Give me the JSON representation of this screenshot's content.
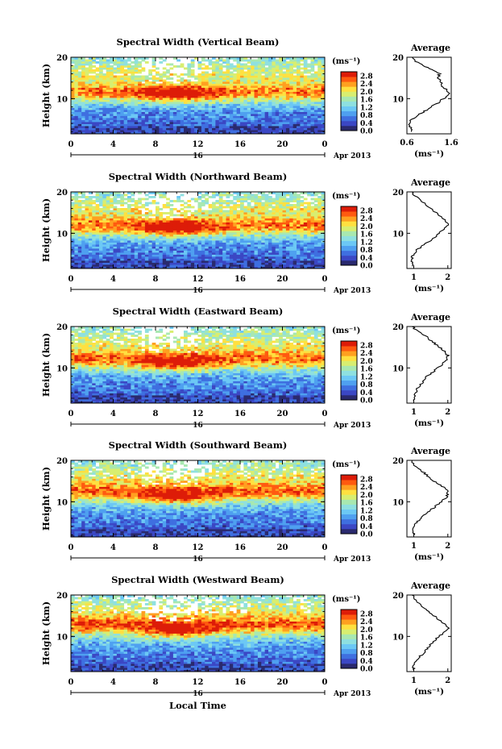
{
  "figure": {
    "xlabel": "Local Time",
    "x_ticks": [
      "0",
      "4",
      "8",
      "12",
      "16",
      "20",
      "0"
    ],
    "date_marker": "16",
    "date_label": "Apr 2013",
    "ylabel": "Height (km)",
    "y_ticks": [
      "20",
      "10"
    ],
    "colorbar_unit": "(ms⁻¹)",
    "colorbar_ticks": [
      "2.8",
      "2.4",
      "2.0",
      "1.6",
      "1.2",
      "0.8",
      "0.4",
      "0.0"
    ],
    "profile_title": "Average",
    "profile_unit": "(ms⁻¹)"
  },
  "chart_data": [
    {
      "type": "heatmap",
      "title": "Spectral Width (Vertical Beam)",
      "xlabel": "",
      "ylabel": "Height (km)",
      "xlim": [
        0,
        24
      ],
      "ylim": [
        1.5,
        20
      ],
      "clim": [
        0,
        3.0
      ],
      "profile": {
        "title": "Average",
        "xlabel": "(ms⁻¹)",
        "xticks": [
          "0.6",
          "1.6"
        ],
        "xlim": [
          0.6,
          1.6
        ],
        "heights": [
          2,
          3,
          4,
          5,
          6,
          7,
          8,
          9,
          10,
          11,
          12,
          13,
          14,
          15,
          16,
          17,
          18,
          19,
          20
        ],
        "values": [
          0.72,
          0.68,
          0.65,
          0.7,
          0.85,
          1.0,
          1.15,
          1.3,
          1.42,
          1.55,
          1.52,
          1.4,
          1.38,
          1.3,
          1.33,
          1.15,
          0.95,
          0.8,
          0.72
        ]
      }
    },
    {
      "type": "heatmap",
      "title": "Spectral Width (Northward Beam)",
      "xlabel": "",
      "ylabel": "Height (km)",
      "xlim": [
        0,
        24
      ],
      "ylim": [
        1.5,
        20
      ],
      "clim": [
        0,
        3.0
      ],
      "profile": {
        "title": "Average",
        "xlabel": "(ms⁻¹)",
        "xticks": [
          "1",
          "2"
        ],
        "xlim": [
          0.8,
          2.1
        ],
        "heights": [
          2,
          3,
          4,
          5,
          6,
          7,
          8,
          9,
          10,
          11,
          12,
          13,
          14,
          15,
          16,
          17,
          18,
          19,
          20
        ],
        "values": [
          1.0,
          0.95,
          0.95,
          1.0,
          1.1,
          1.25,
          1.45,
          1.6,
          1.75,
          1.9,
          2.0,
          1.95,
          1.8,
          1.65,
          1.5,
          1.35,
          1.2,
          1.05,
          0.95
        ]
      }
    },
    {
      "type": "heatmap",
      "title": "Spectral Width (Eastward Beam)",
      "xlabel": "",
      "ylabel": "Height (km)",
      "xlim": [
        0,
        24
      ],
      "ylim": [
        1.5,
        20
      ],
      "clim": [
        0,
        3.0
      ],
      "profile": {
        "title": "Average",
        "xlabel": "(ms⁻¹)",
        "xticks": [
          "1",
          "2"
        ],
        "xlim": [
          0.8,
          2.1
        ],
        "heights": [
          2,
          3,
          4,
          5,
          6,
          7,
          8,
          9,
          10,
          11,
          12,
          13,
          14,
          15,
          16,
          17,
          18,
          19,
          20
        ],
        "values": [
          1.0,
          1.0,
          1.05,
          1.1,
          1.2,
          1.3,
          1.4,
          1.55,
          1.7,
          1.85,
          1.95,
          2.0,
          1.9,
          1.75,
          1.6,
          1.45,
          1.3,
          1.1,
          0.95
        ]
      }
    },
    {
      "type": "heatmap",
      "title": "Spectral Width (Southward Beam)",
      "xlabel": "",
      "ylabel": "Height (km)",
      "xlim": [
        0,
        24
      ],
      "ylim": [
        1.5,
        20
      ],
      "clim": [
        0,
        3.0
      ],
      "profile": {
        "title": "Average",
        "xlabel": "(ms⁻¹)",
        "xticks": [
          "1",
          "2"
        ],
        "xlim": [
          0.8,
          2.1
        ],
        "heights": [
          2,
          3,
          4,
          5,
          6,
          7,
          8,
          9,
          10,
          11,
          12,
          13,
          14,
          15,
          16,
          17,
          18,
          19,
          20
        ],
        "values": [
          1.0,
          1.0,
          1.0,
          1.1,
          1.2,
          1.35,
          1.5,
          1.65,
          1.8,
          1.95,
          2.0,
          1.95,
          1.8,
          1.6,
          1.45,
          1.3,
          1.15,
          1.0,
          0.95
        ]
      }
    },
    {
      "type": "heatmap",
      "title": "Spectral Width (Westward Beam)",
      "xlabel": "Local Time",
      "ylabel": "Height (km)",
      "xlim": [
        0,
        24
      ],
      "ylim": [
        1.5,
        20
      ],
      "clim": [
        0,
        3.0
      ],
      "profile": {
        "title": "Average",
        "xlabel": "(ms⁻¹)",
        "xticks": [
          "1",
          "2"
        ],
        "xlim": [
          0.8,
          2.1
        ],
        "heights": [
          2,
          3,
          4,
          5,
          6,
          7,
          8,
          9,
          10,
          11,
          12,
          13,
          14,
          15,
          16,
          17,
          18,
          19,
          20
        ],
        "values": [
          1.0,
          1.0,
          1.05,
          1.15,
          1.3,
          1.4,
          1.5,
          1.6,
          1.75,
          1.9,
          2.0,
          1.9,
          1.75,
          1.6,
          1.45,
          1.3,
          1.15,
          1.05,
          0.95
        ]
      }
    }
  ],
  "colors": {
    "colormap": [
      "#2a2a6e",
      "#3b47c4",
      "#3f6fe0",
      "#4fa0f0",
      "#6cc8f5",
      "#8ee0e0",
      "#a8e8b0",
      "#d8ee70",
      "#ffe040",
      "#ffa020",
      "#ff5a10",
      "#dd1c08"
    ]
  }
}
